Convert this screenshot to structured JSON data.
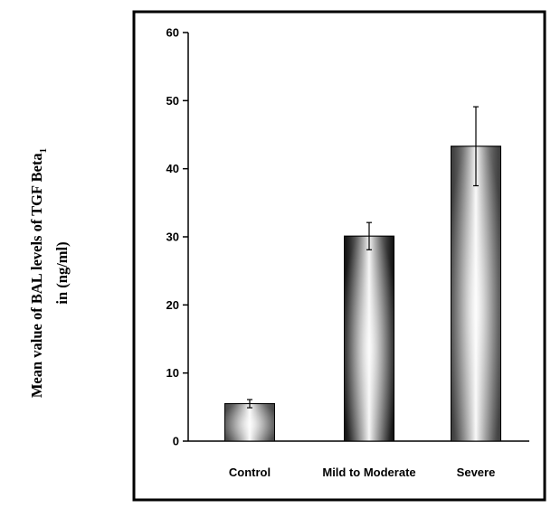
{
  "chart_data": {
    "type": "bar",
    "categories": [
      "Control",
      "Mild to Moderate",
      "Severe"
    ],
    "values": [
      5.5,
      30.1,
      43.3
    ],
    "errors": [
      0.6,
      2.0,
      5.8
    ],
    "ylim": [
      0,
      60
    ],
    "yticks": [
      0,
      10,
      20,
      30,
      40,
      50,
      60
    ],
    "ylabel_line1": "Mean value of BAL levels of TGF Beta",
    "ylabel_subscript": "1",
    "ylabel_line2": "in (ng/ml)",
    "grid": false,
    "legend": "none",
    "colors": {
      "control": "#808080",
      "mild_to_moderate": "#1e1e1e",
      "severe": "#6e6e6e"
    }
  }
}
